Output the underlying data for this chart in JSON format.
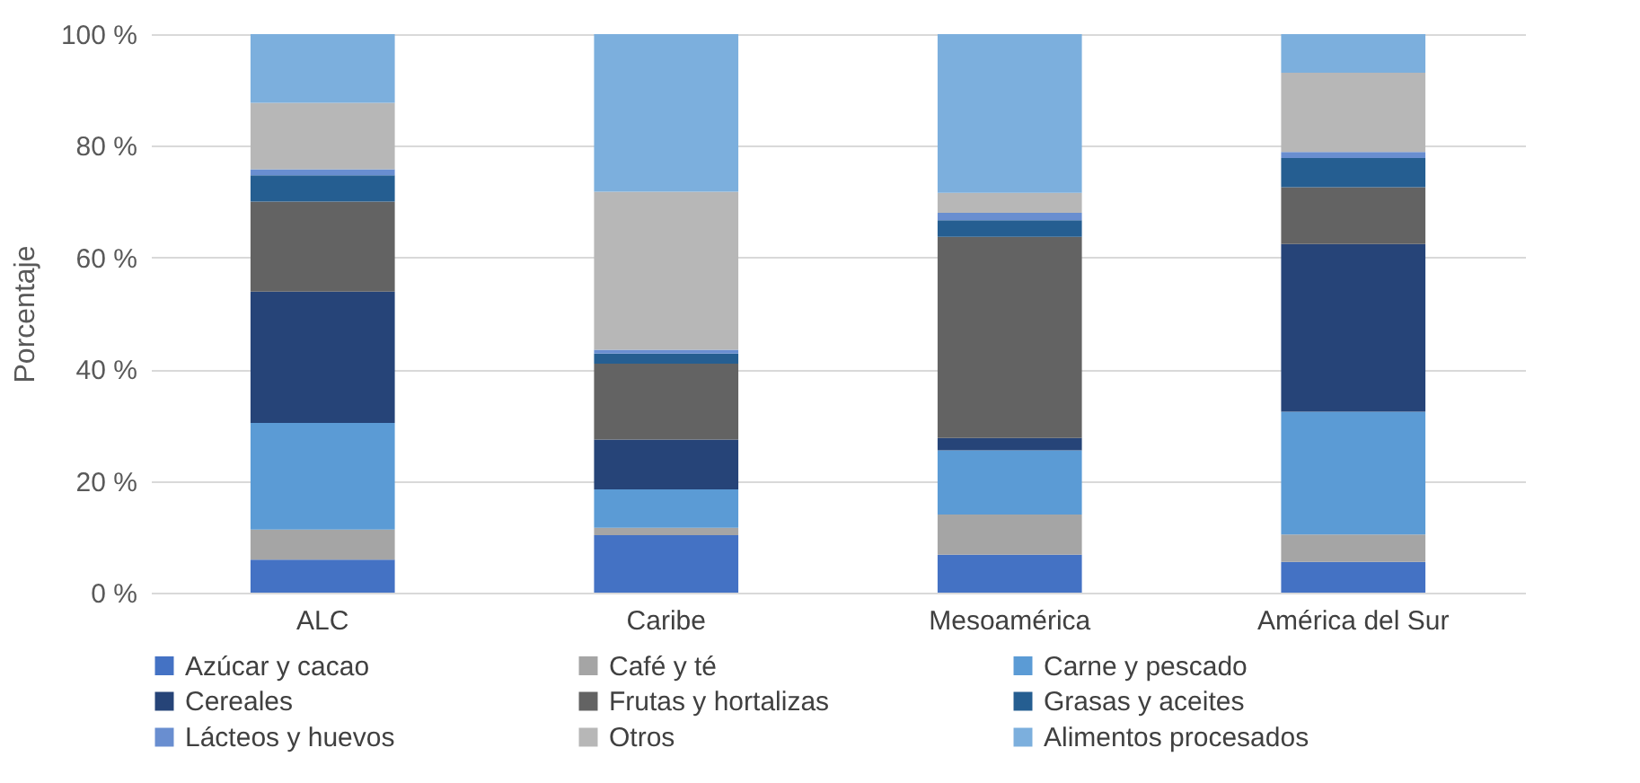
{
  "chart_data": {
    "type": "bar",
    "stacked": true,
    "ylabel": "Porcentaje",
    "categories": [
      "ALC",
      "Caribe",
      "Mesoamérica",
      "América del Sur"
    ],
    "series": [
      {
        "name": "Azúcar y cacao",
        "color": "#4472c4",
        "values": [
          5.9,
          10.3,
          6.8,
          5.5
        ]
      },
      {
        "name": "Café y té",
        "color": "#a5a5a5",
        "values": [
          5.4,
          1.3,
          7.2,
          4.9
        ]
      },
      {
        "name": "Carne y pescado",
        "color": "#5b9bd5",
        "values": [
          19.1,
          6.9,
          11.5,
          22.0
        ]
      },
      {
        "name": "Cereales",
        "color": "#264478",
        "values": [
          23.5,
          8.9,
          2.2,
          30.0
        ]
      },
      {
        "name": "Frutas y hortalizas",
        "color": "#636363",
        "values": [
          16.1,
          13.6,
          36.0,
          10.2
        ]
      },
      {
        "name": "Grasas y aceites",
        "color": "#255e91",
        "values": [
          4.7,
          1.8,
          3.0,
          5.2
        ]
      },
      {
        "name": "Lácteos y huevos",
        "color": "#698ed0",
        "values": [
          1.1,
          0.7,
          1.3,
          1.1
        ]
      },
      {
        "name": "Otros",
        "color": "#b7b7b7",
        "values": [
          11.9,
          28.3,
          3.6,
          14.2
        ]
      },
      {
        "name": "Alimentos procesados",
        "color": "#7cafdd",
        "values": [
          12.3,
          28.2,
          28.4,
          6.9
        ]
      }
    ],
    "ylim": [
      0,
      100
    ],
    "yticks": [
      {
        "value": 0,
        "label": "0 %"
      },
      {
        "value": 20,
        "label": "20 %"
      },
      {
        "value": 40,
        "label": "40 %"
      },
      {
        "value": 60,
        "label": "60 %"
      },
      {
        "value": 80,
        "label": "80 %"
      },
      {
        "value": 100,
        "label": "100 %"
      }
    ],
    "grid": "y",
    "legend": "bottom"
  }
}
